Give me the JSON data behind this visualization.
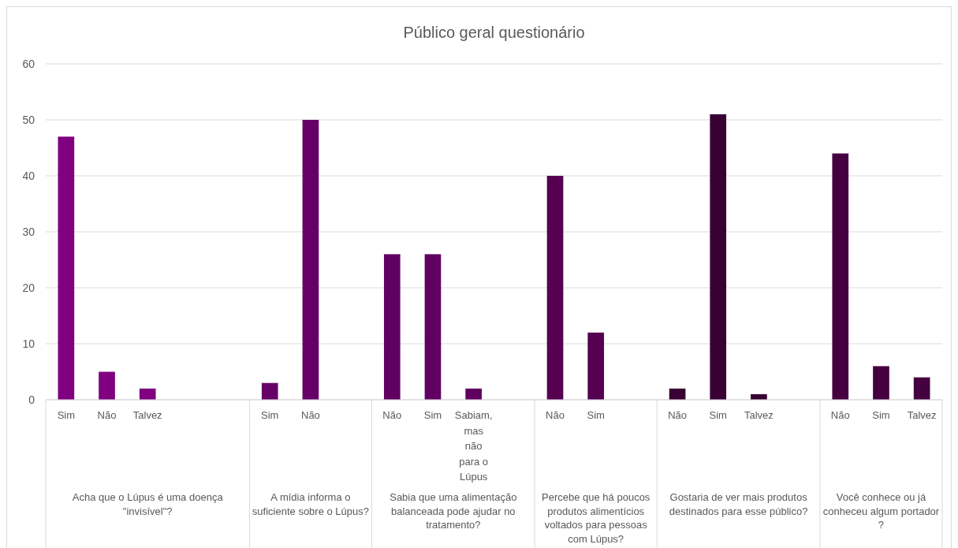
{
  "chart_data": {
    "type": "bar",
    "title": "Público geral questionário",
    "categories": [
      "Sim",
      "Não",
      "Talvez",
      null,
      null,
      "Sim",
      "Não",
      null,
      "Não",
      "Sim",
      "Sabiam, mas não para o Lúpus",
      null,
      "Não",
      "Sim",
      null,
      "Não",
      "Sim",
      "Talvez",
      null,
      "Não",
      "Sim",
      "Talvez"
    ],
    "values": [
      47,
      5,
      2,
      null,
      null,
      3,
      50,
      null,
      26,
      26,
      2,
      null,
      40,
      12,
      null,
      2,
      51,
      1,
      null,
      44,
      6,
      4
    ],
    "colors": [
      "#800080",
      "#800080",
      "#800080",
      null,
      null,
      "#660066",
      "#660066",
      null,
      "#600060",
      "#600060",
      "#600060",
      null,
      "#550050",
      "#550050",
      null,
      "#380033",
      "#380033",
      "#380033",
      null,
      "#440040",
      "#440040",
      "#440040"
    ],
    "annotations": [
      "Acha que o Lúpus é uma doença \"invisível\"?",
      "A mídia informa o suficiente sobre o Lúpus?",
      "Sabia que uma alimentação balanceada pode ajudar no tratamento?",
      "Percebe que há poucos produtos alimentícios voltados para pessoas com Lúpus?",
      "Gostaria de ver mais produtos destinados para esse público?",
      "Você conhece ou já conheceu algum portador ?"
    ],
    "ylim": [
      0,
      60
    ],
    "yticks": [
      0,
      10,
      20,
      30,
      40,
      50,
      60
    ],
    "grid": true
  }
}
